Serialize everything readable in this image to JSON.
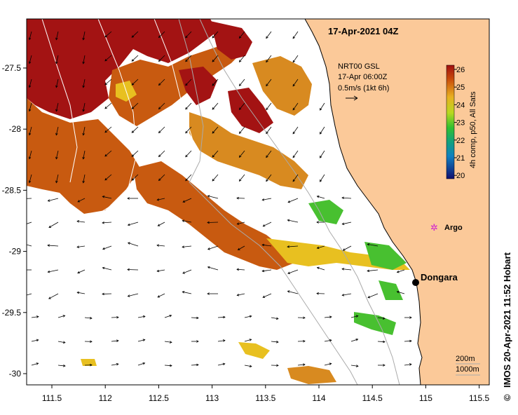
{
  "title": "17-Apr-2021 04Z",
  "current_info": {
    "source": "NRT00 GSL",
    "time": "17-Apr 06:00Z",
    "scale": "0.5m/s (1kt 6h)"
  },
  "colorbar": {
    "label": "4h comp, p50, All Sats",
    "ticks": [
      "26",
      "25",
      "24",
      "23",
      "22",
      "21",
      "20"
    ],
    "colors": [
      "#a01010",
      "#c84a0a",
      "#d8821a",
      "#e8b020",
      "#b8d820",
      "#30c030",
      "#10a080",
      "#1080c0",
      "#1030a0",
      "#101070"
    ]
  },
  "axes": {
    "x_ticks": [
      "111.5",
      "112",
      "112.5",
      "113",
      "113.5",
      "114",
      "114.5",
      "115",
      "115.5"
    ],
    "y_ticks": [
      "-27.5",
      "-28",
      "-28.5",
      "-29",
      "-29.5",
      "-30"
    ]
  },
  "places": {
    "dongara": "Dongara",
    "argo": "Argo"
  },
  "depth_legend": {
    "d200": "200m",
    "d1000": "1000m"
  },
  "credit": "IMOS 20-Apr-2021 11:52 Hobart",
  "copyright": "©",
  "colors": {
    "land": "#fbc999",
    "sst_hot": "#a31313",
    "sst_warm": "#c85a10",
    "sst_mid": "#d88a20",
    "sst_yellow": "#e8c020",
    "sst_green": "#48c030"
  }
}
